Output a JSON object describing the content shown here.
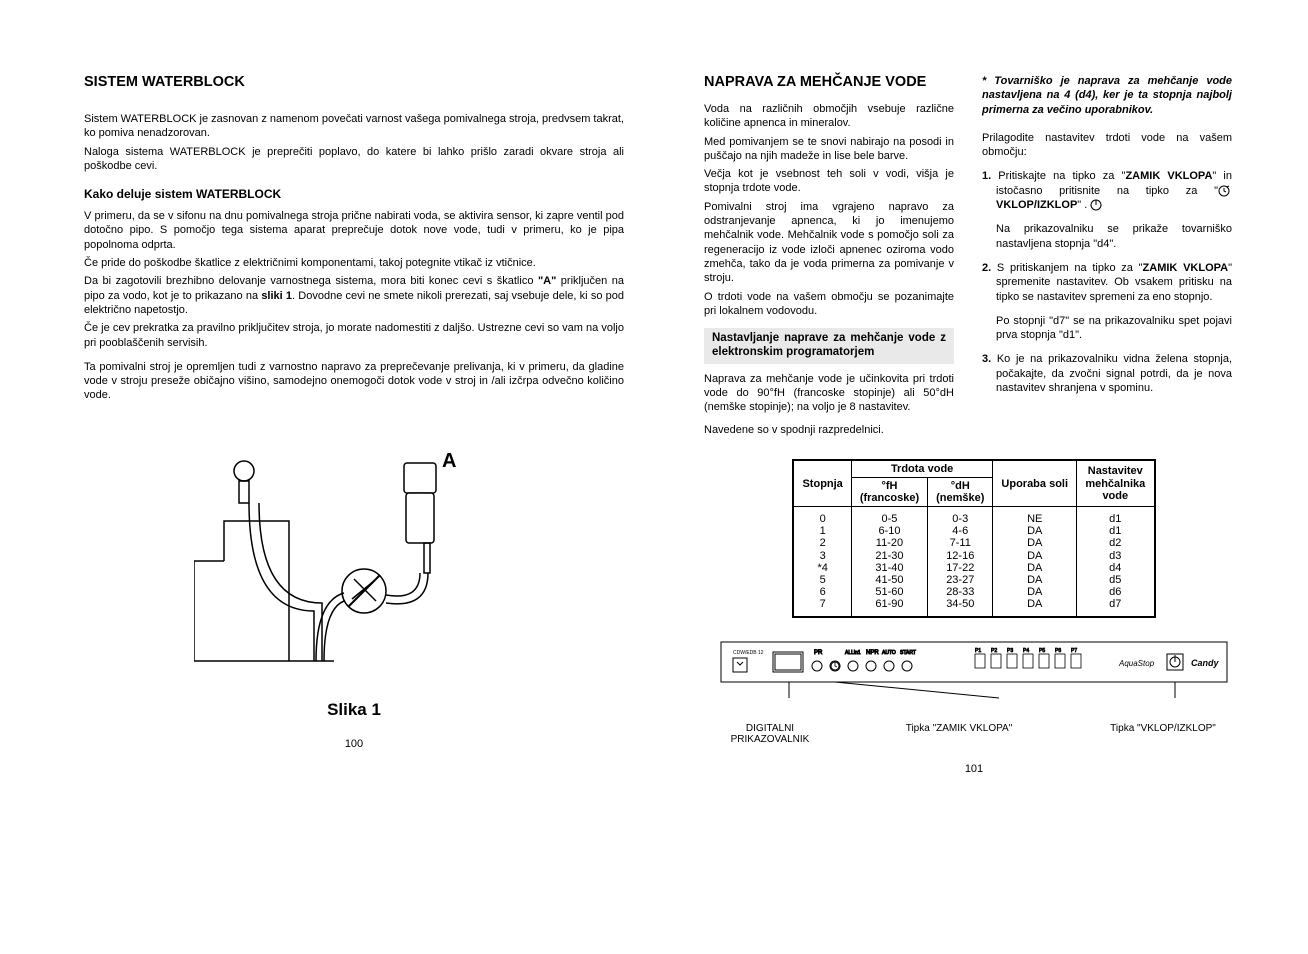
{
  "left": {
    "title": "SISTEM WATERBLOCK",
    "p1": "Sistem WATERBLOCK je zasnovan z namenom povečati varnost vašega pomivalnega stroja, predvsem takrat, ko pomiva nenadzorovan.",
    "p2": "Naloga sistema WATERBLOCK je preprečiti poplavo, do katere bi lahko prišlo zaradi okvare stroja ali poškodbe cevi.",
    "sub1": "Kako deluje sistem WATERBLOCK",
    "p3": "V primeru, da se v sifonu na dnu pomivalnega stroja prične nabirati voda, se aktivira sensor, ki zapre ventil pod dotočno pipo. S pomočjo tega sistema aparat preprečuje dotok nove vode, tudi v primeru, ko je pipa popolnoma odprta.",
    "p4": "Če pride do poškodbe škatlice z električnimi komponentami, takoj potegnite vtikač iz vtičnice.",
    "p5a": "Da bi zagotovili brezhibno delovanje varnostnega sistema, mora biti konec cevi s škatlico ",
    "p5b": "\"A\"",
    "p5c": " priključen na pipo za vodo, kot je to prikazano na ",
    "p5d": "sliki 1",
    "p5e": ". Dovodne cevi ne smete nikoli prerezati, saj vsebuje dele, ki so pod električno napetostjo.",
    "p6": "Če je cev prekratka za pravilno priključitev stroja, jo morate nadomestiti z daljšo. Ustrezne cevi so vam na voljo pri pooblaščenih servisih.",
    "p7": "Ta pomivalni stroj je opremljen tudi z varnostno napravo za preprečevanje prelivanja, ki v primeru, da gladine vode v stroju preseže običajno višino, samodejno onemogoči dotok vode v stroj in /ali izčrpa odvečno količino vode.",
    "fig_caption": "Slika 1",
    "page_num": "100"
  },
  "right": {
    "col_a": {
      "title": "NAPRAVA ZA MEHČANJE VODE",
      "p1": "Voda na različnih območjih vsebuje različne količine apnenca in mineralov.",
      "p2": "Med pomivanjem se te snovi nabirajo na posodi in puščajo na njih madeže in lise bele barve.",
      "p3": "Večja kot je vsebnost teh soli v vodi, višja je stopnja trdote vode.",
      "p4": "Pomivalni stroj ima vgrajeno napravo za odstranjevanje apnenca, ki jo imenujemo mehčalnik vode. Mehčalnik vode s pomočjo soli za regeneracijo iz vode izloči apnenec oziroma vodo zmehča, tako da je voda primerna za pomivanje v stroju.",
      "p5": "O trdoti vode na vašem območju se pozanimajte pri lokalnem vodovodu.",
      "sub": "Nastavljanje naprave za mehčanje vode z elektronskim programatorjem",
      "p6": "Naprava za mehčanje vode je učinkovita pri trdoti vode do 90°fH (francoske stopinje) ali 50°dH (nemške stopinje); na voljo je 8 nastavitev.",
      "p7": "Navedene so v spodnji razpredelnici."
    },
    "col_b": {
      "note1": "* Tovarniško je naprava za mehčanje vode nastavljena na 4 (d4), ker je ta stopnja najbolj primerna za večino uporabnikov.",
      "p1": "Prilagodite nastavitev trdoti vode na vašem območju:",
      "s1a": "Pritiskajte na tipko za \"",
      "s1b": "ZAMIK VKLOPA",
      "s1c": "\"      in istočasno pritisnite na tipko za \"",
      "s1d": "VKLOP/IZKLOP",
      "s1e": "\"     .",
      "s1f": "Na prikazovalniku se prikaže tovarniško nastavljena stopnja \"d4\".",
      "s2a": "S pritiskanjem na tipko za \"",
      "s2b": "ZAMIK VKLOPA",
      "s2c": "\" spremenite nastavitev. Ob vsakem pritisku na tipko se nastavitev spremeni za eno stopnjo.",
      "s2d": "Po stopnji \"d7\" se na prikazovalniku spet pojavi prva stopnja \"d1\".",
      "s3": "Ko je na prikazovalniku vidna želena stopnja, počakajte, da zvočni signal potrdi, da je nova nastavitev shranjena v spominu."
    },
    "table": {
      "h_stopnja": "Stopnja",
      "h_trdota": "Trdota vode",
      "h_fh": "°fH\n(francoske)",
      "h_dh": "°dH\n(nemške)",
      "h_uporaba": "Uporaba soli",
      "h_nastavitev": "Nastavitev mehčalnika vode",
      "rows": [
        {
          "s": "0",
          "fh": "0-5",
          "dh": "0-3",
          "u": "NE",
          "n": "d1"
        },
        {
          "s": "1",
          "fh": "6-10",
          "dh": "4-6",
          "u": "DA",
          "n": "d1"
        },
        {
          "s": "2",
          "fh": "11-20",
          "dh": "7-11",
          "u": "DA",
          "n": "d2"
        },
        {
          "s": "3",
          "fh": "21-30",
          "dh": "12-16",
          "u": "DA",
          "n": "d3"
        },
        {
          "s": "*4",
          "fh": "31-40",
          "dh": "17-22",
          "u": "DA",
          "n": "d4"
        },
        {
          "s": "5",
          "fh": "41-50",
          "dh": "23-27",
          "u": "DA",
          "n": "d5"
        },
        {
          "s": "6",
          "fh": "51-60",
          "dh": "28-33",
          "u": "DA",
          "n": "d6"
        },
        {
          "s": "7",
          "fh": "61-90",
          "dh": "34-50",
          "u": "DA",
          "n": "d7"
        }
      ]
    },
    "labels": {
      "l1": "DIGITALNI PRIKAZOVALNIK",
      "l2": "Tipka \"ZAMIK VKLOPA\"",
      "l3": "Tipka \"VKLOP/IZKLOP\""
    },
    "page_num": "101"
  },
  "style": {
    "text_color": "#000000",
    "bg_color": "#ffffff",
    "sub_bg": "#e9e9e9",
    "body_fontsize": 11,
    "h2_fontsize": 14.5
  }
}
